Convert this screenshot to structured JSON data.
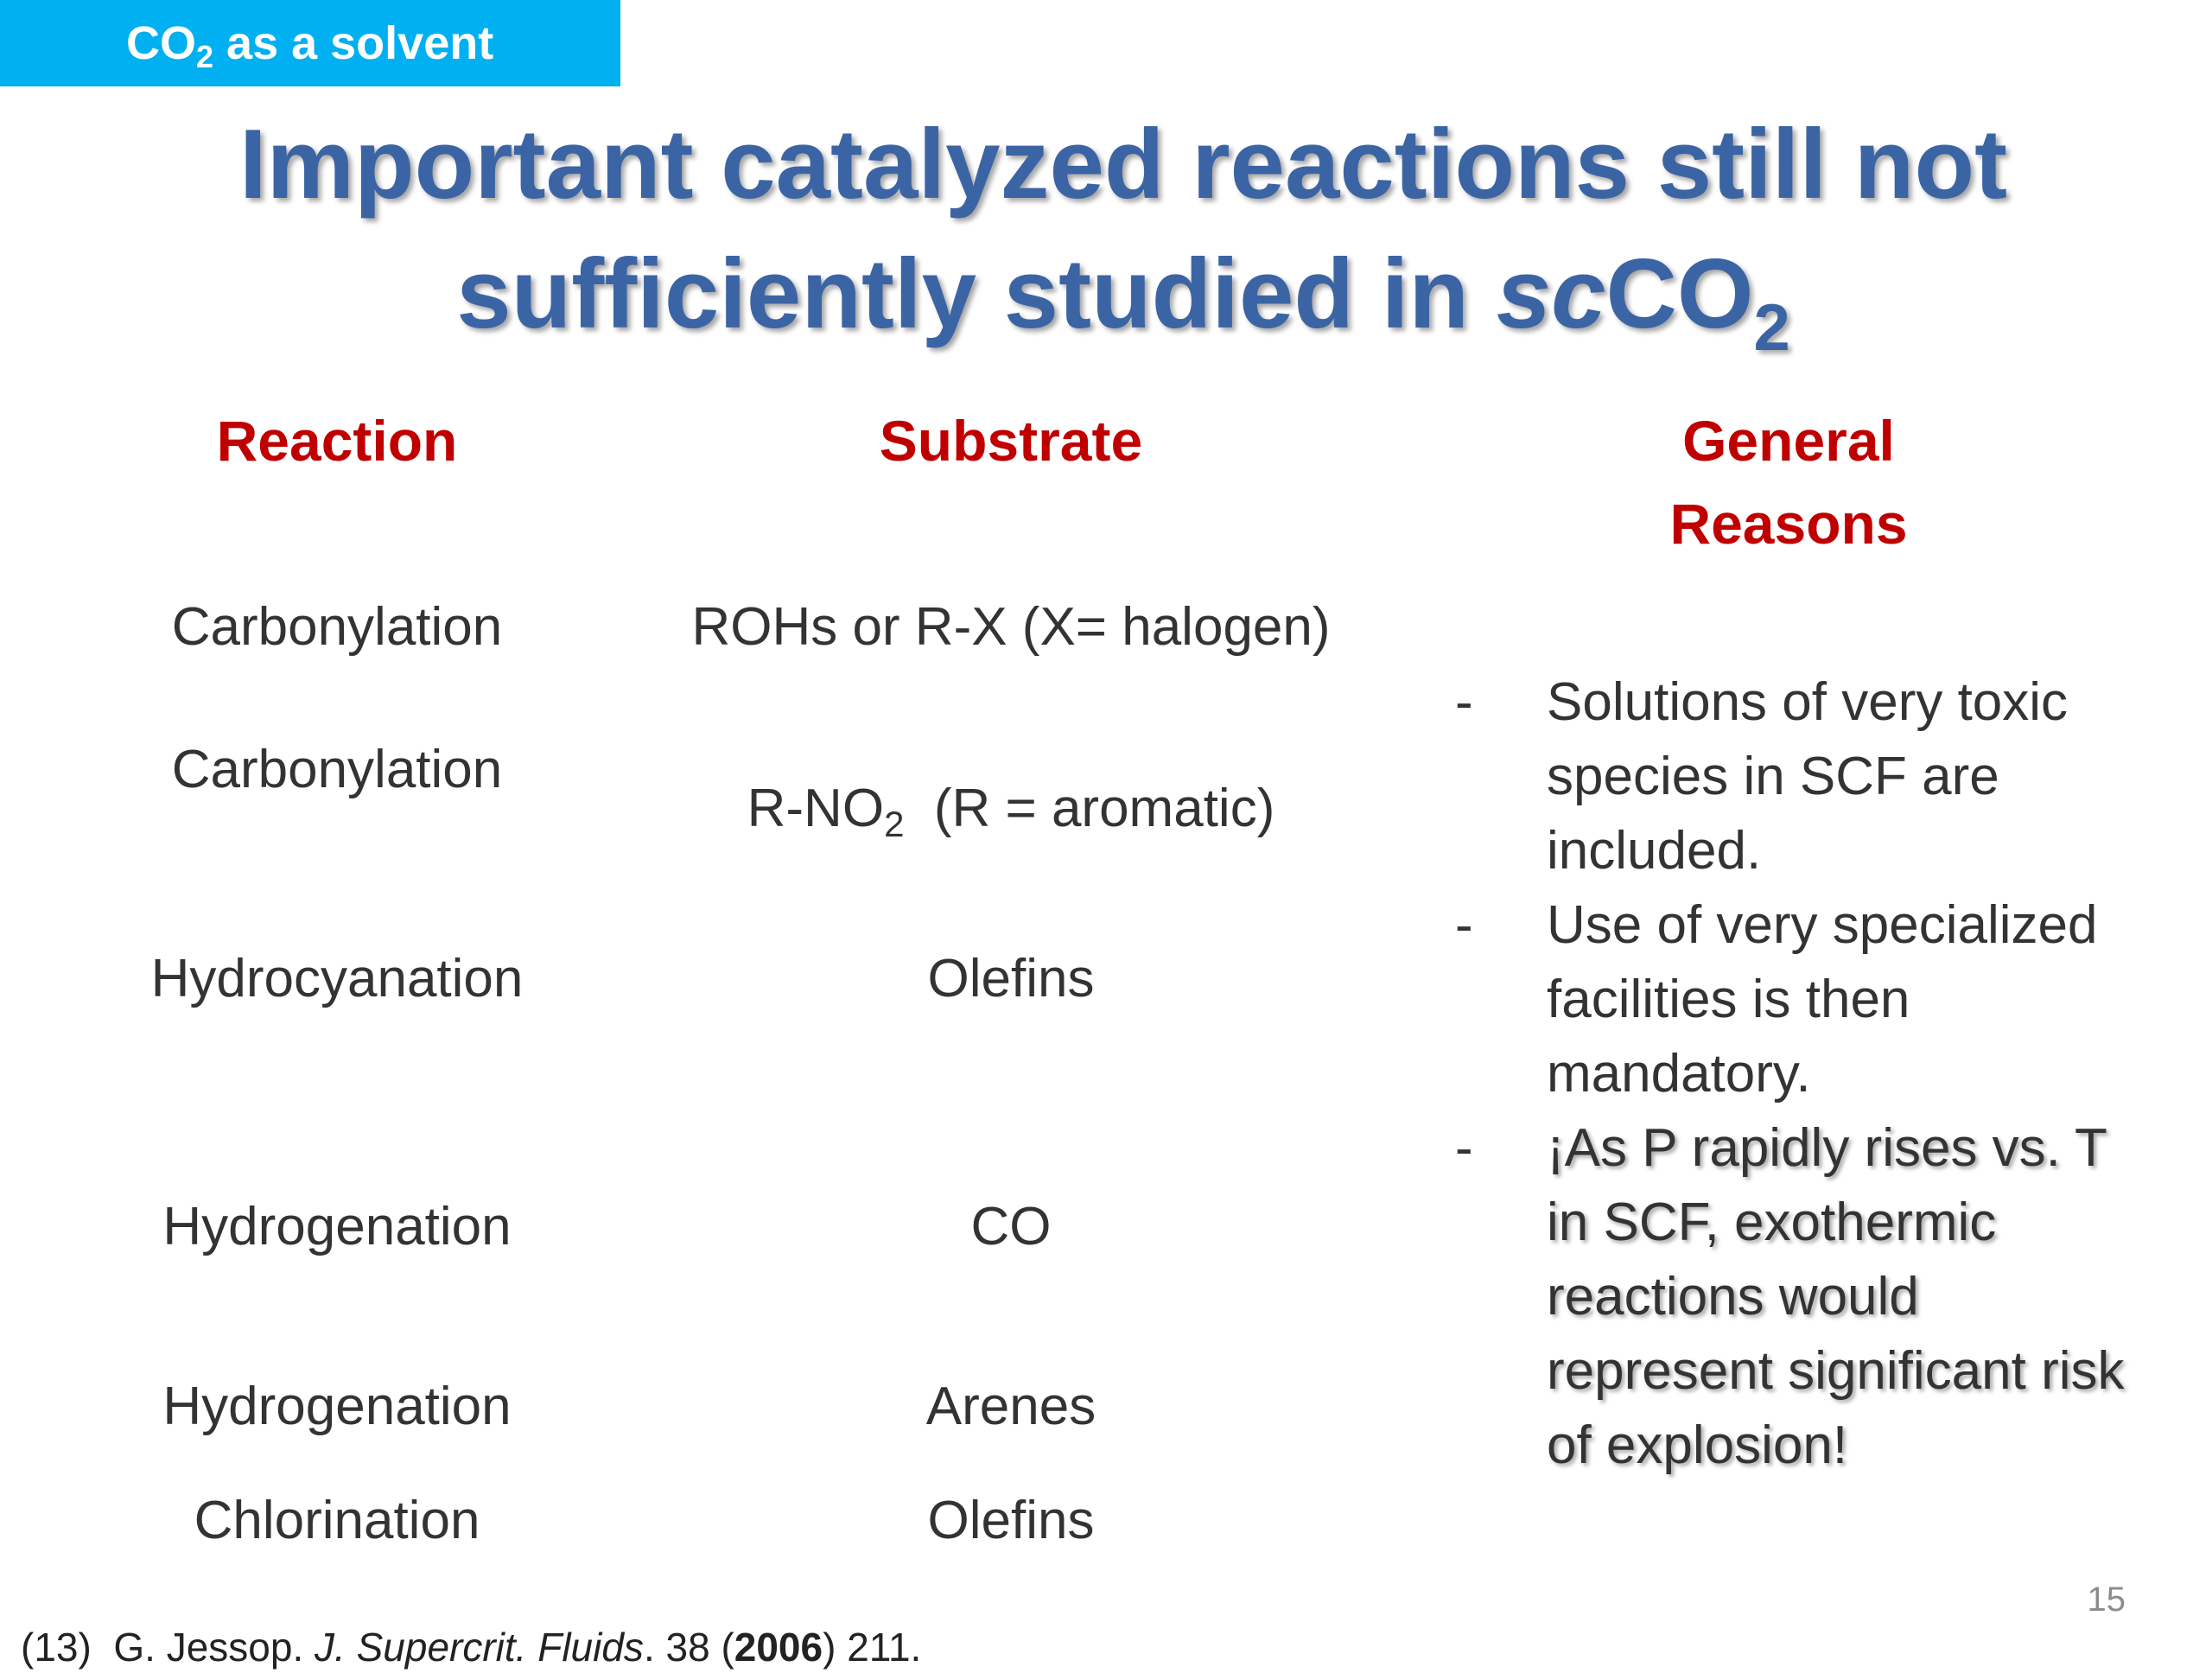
{
  "section_tab": {
    "prefix": "CO",
    "subscript": "2",
    "suffix": " as a solvent"
  },
  "title": {
    "line1": "Important catalyzed reactions still not",
    "line2_prefix": "sufficiently studied in ",
    "line2_italic": "sc",
    "line2_formula": "CO",
    "line2_subscript": "2"
  },
  "headers": {
    "reaction": "Reaction",
    "substrate": "Substrate",
    "reasons_line1": "General",
    "reasons_line2": "Reasons"
  },
  "rows": [
    {
      "reaction": "Carbonylation",
      "substrate": "ROHs or R-X (X= halogen)"
    },
    {
      "reaction": "Carbonylation",
      "substrate_prefix": "R-NO",
      "substrate_subscript": "2",
      "substrate_suffix": "  (R = aromatic)"
    },
    {
      "reaction": "Hydrocyanation",
      "substrate": "Olefins"
    },
    {
      "reaction": "Hydrogenation",
      "substrate": "CO"
    },
    {
      "reaction": "Hydrogenation",
      "substrate": "Arenes"
    },
    {
      "reaction": "Chlorination",
      "substrate": "Olefins"
    }
  ],
  "reasons": [
    {
      "dash": "-",
      "text": "Solutions of very toxic species in SCF are included."
    },
    {
      "dash": "-",
      "text": "Use of very specialized facilities is then mandatory."
    },
    {
      "dash": "-",
      "text": "¡As P rapidly rises vs. T in SCF, exothermic reactions would represent significant risk of explosion!"
    }
  ],
  "page_number": "15",
  "reference": {
    "number": "(13)",
    "author": "G. Jessop.",
    "journal": "J. Supercrit. Fluids",
    "volume": ". 38 (",
    "year": "2006",
    "pages": ") 211."
  }
}
